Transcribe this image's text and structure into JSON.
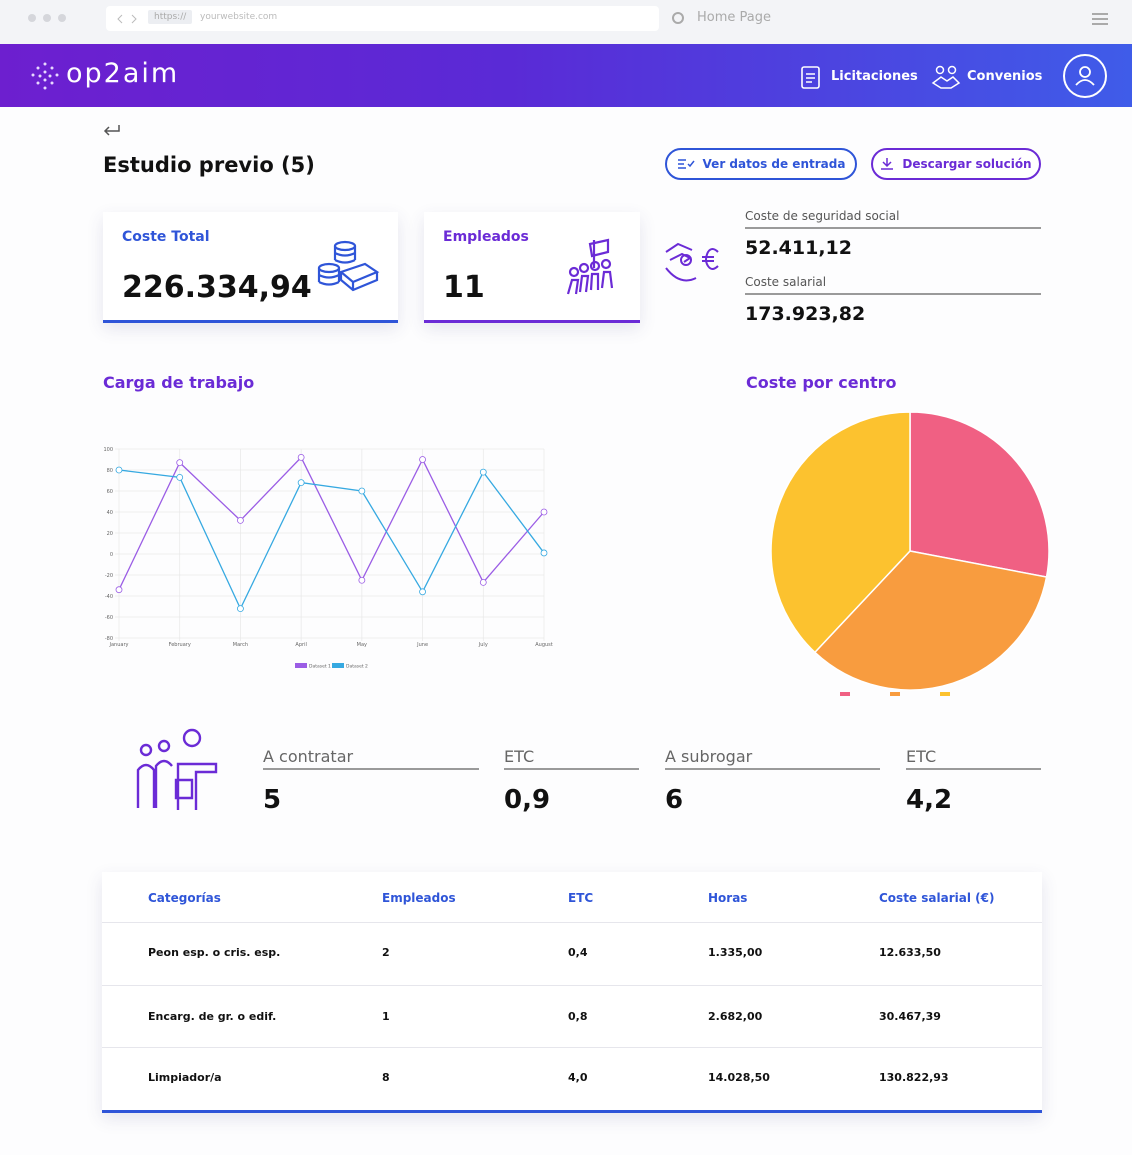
{
  "browser": {
    "scheme": "https://",
    "url": "yourwebsite.com",
    "tab": "Home Page"
  },
  "header": {
    "logo": "op2aim",
    "nav": [
      "Licitaciones",
      "Convenios"
    ]
  },
  "page": {
    "title": "Estudio previo (5)",
    "buttons": [
      "Ver datos de entrada",
      "Descargar solución"
    ]
  },
  "kpis": [
    {
      "label": "Coste Total",
      "value": "226.334,94"
    },
    {
      "label": "Empleados",
      "value": "11"
    }
  ],
  "costs": [
    {
      "label": "Coste de seguridad social",
      "value": "52.411,12"
    },
    {
      "label": "Coste salarial",
      "value": "173.923,82"
    }
  ],
  "chart_data": [
    {
      "type": "line",
      "title": "Carga de trabajo",
      "categories": [
        "January",
        "February",
        "March",
        "April",
        "May",
        "June",
        "July",
        "August"
      ],
      "series": [
        {
          "name": "Dataset 1",
          "color": "#9b5de5",
          "values": [
            -34,
            87,
            32,
            92,
            -25,
            90,
            -27,
            40
          ]
        },
        {
          "name": "Dataset 2",
          "color": "#36a9e1",
          "values": [
            80,
            73,
            -52,
            68,
            60,
            -36,
            78,
            1
          ]
        }
      ],
      "ylim": [
        -80,
        100
      ],
      "yticks": [
        -80,
        -60,
        -40,
        -20,
        0,
        20,
        40,
        60,
        80,
        100
      ],
      "grid": true
    },
    {
      "type": "pie",
      "title": "Coste por centro",
      "values": [
        28,
        34,
        38
      ],
      "colors": [
        "#f06083",
        "#f89c3f",
        "#fcc22f"
      ]
    }
  ],
  "stats": [
    {
      "label": "A contratar",
      "value": "5"
    },
    {
      "label": "ETC",
      "value": "0,9"
    },
    {
      "label": "A subrogar",
      "value": "6"
    },
    {
      "label": "ETC",
      "value": "4,2"
    }
  ],
  "table": {
    "header": [
      "Categorías",
      "Empleados",
      "ETC",
      "Horas",
      "Coste salarial (€)"
    ],
    "rows": [
      [
        "Peon esp. o cris. esp.",
        "2",
        "0,4",
        "1.335,00",
        "12.633,50"
      ],
      [
        "Encarg. de gr. o edif.",
        "1",
        "0,8",
        "2.682,00",
        "30.467,39"
      ],
      [
        "Limpiador/a",
        "8",
        "4,0",
        "14.028,50",
        "130.822,93"
      ]
    ]
  }
}
